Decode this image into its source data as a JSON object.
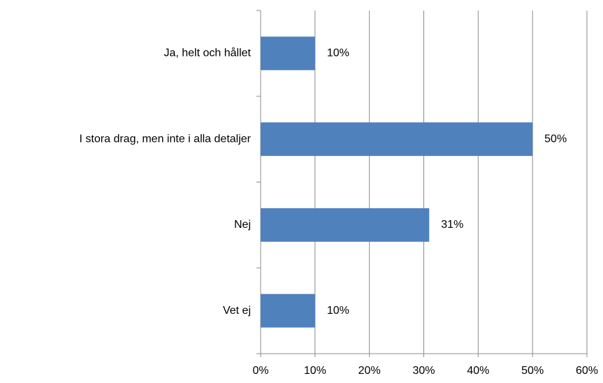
{
  "chart_data": {
    "type": "bar",
    "orientation": "horizontal",
    "categories": [
      "Ja, helt och hållet",
      "I stora drag, men inte i alla detaljer",
      "Nej",
      "Vet ej"
    ],
    "values": [
      10,
      50,
      31,
      10
    ],
    "value_labels": [
      "10%",
      "50%",
      "31%",
      "10%"
    ],
    "color": "#4f81bd",
    "xlim": [
      0,
      60
    ],
    "xticks": [
      {
        "value": 0,
        "label": "0%"
      },
      {
        "value": 10,
        "label": "10%"
      },
      {
        "value": 20,
        "label": "20%"
      },
      {
        "value": 30,
        "label": "30%"
      },
      {
        "value": 40,
        "label": "40%"
      },
      {
        "value": 50,
        "label": "50%"
      },
      {
        "value": 60,
        "label": "60%"
      }
    ],
    "grid": true
  }
}
